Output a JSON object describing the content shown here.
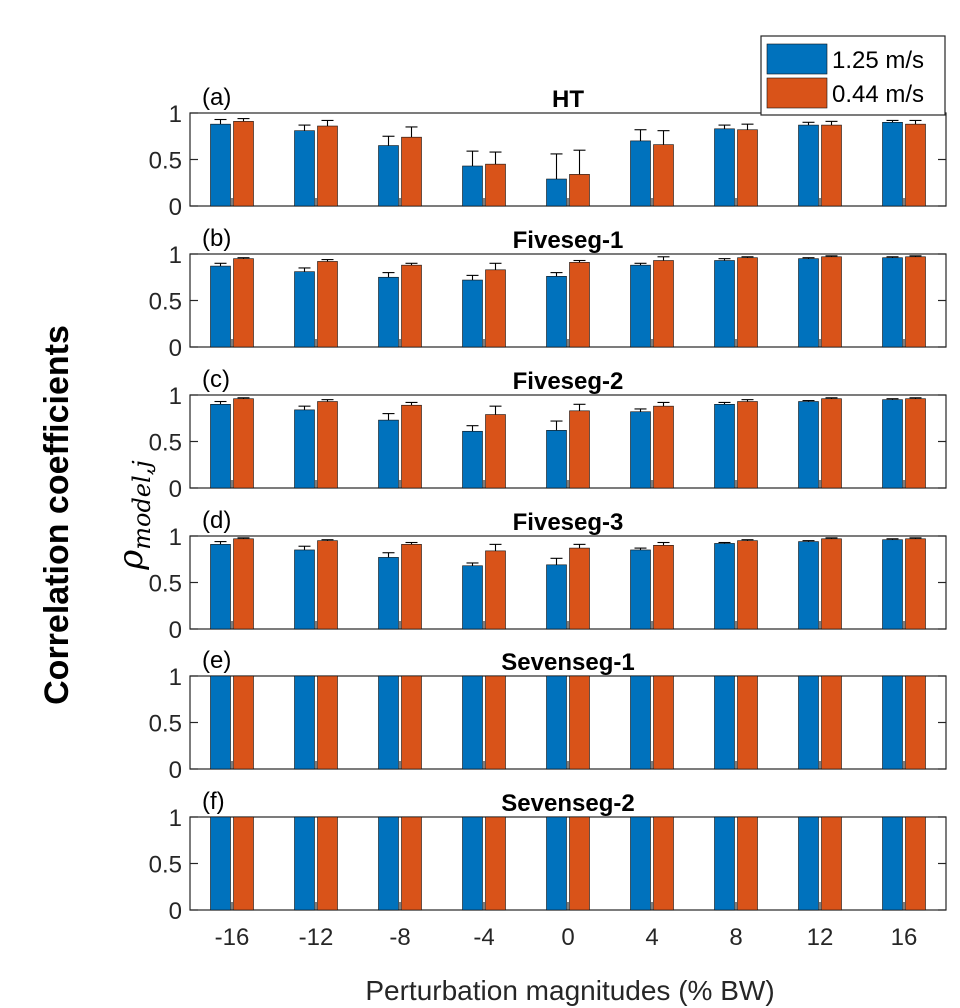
{
  "chart_data": {
    "type": "bar",
    "title": "",
    "xlabel": "Perturbation magnitudes (% BW)",
    "ylabel": "Correlation coefficients",
    "ylabel_symbol": "ρ",
    "ylabel_subscript": "model,j",
    "categories": [
      "-16",
      "-12",
      "-8",
      "-4",
      "0",
      "4",
      "8",
      "12",
      "16"
    ],
    "legend": {
      "placement": "top-right",
      "entries": [
        "1.25 m/s",
        "0.44 m/s"
      ]
    },
    "colors": {
      "1.25 m/s": "#0072BD",
      "0.44 m/s": "#D95319"
    },
    "panels": [
      {
        "label": "(a)",
        "title": "HT",
        "ylim": [
          0,
          1
        ],
        "yticks": [
          "0",
          "0.5",
          "1"
        ],
        "series": [
          {
            "name": "1.25 m/s",
            "values": [
              0.88,
              0.81,
              0.65,
              0.43,
              0.29,
              0.7,
              0.83,
              0.87,
              0.9
            ],
            "errors": [
              0.05,
              0.06,
              0.1,
              0.16,
              0.27,
              0.12,
              0.04,
              0.03,
              0.02
            ]
          },
          {
            "name": "0.44 m/s",
            "values": [
              0.91,
              0.86,
              0.74,
              0.45,
              0.34,
              0.66,
              0.82,
              0.87,
              0.88
            ],
            "errors": [
              0.03,
              0.06,
              0.11,
              0.13,
              0.26,
              0.15,
              0.06,
              0.04,
              0.04
            ]
          }
        ]
      },
      {
        "label": "(b)",
        "title": "Fiveseg-1",
        "ylim": [
          0,
          1
        ],
        "yticks": [
          "0",
          "0.5",
          "1"
        ],
        "series": [
          {
            "name": "1.25 m/s",
            "values": [
              0.87,
              0.81,
              0.75,
              0.72,
              0.76,
              0.88,
              0.93,
              0.95,
              0.96
            ],
            "errors": [
              0.03,
              0.04,
              0.05,
              0.05,
              0.04,
              0.02,
              0.02,
              0.01,
              0.01
            ]
          },
          {
            "name": "0.44 m/s",
            "values": [
              0.95,
              0.92,
              0.88,
              0.83,
              0.91,
              0.93,
              0.96,
              0.97,
              0.97
            ],
            "errors": [
              0.01,
              0.02,
              0.02,
              0.07,
              0.02,
              0.04,
              0.01,
              0.01,
              0.01
            ]
          }
        ]
      },
      {
        "label": "(c)",
        "title": "Fiveseg-2",
        "ylim": [
          0,
          1
        ],
        "yticks": [
          "0",
          "0.5",
          "1"
        ],
        "series": [
          {
            "name": "1.25 m/s",
            "values": [
              0.9,
              0.84,
              0.73,
              0.61,
              0.62,
              0.82,
              0.9,
              0.93,
              0.95
            ],
            "errors": [
              0.03,
              0.04,
              0.07,
              0.06,
              0.1,
              0.03,
              0.02,
              0.01,
              0.01
            ]
          },
          {
            "name": "0.44 m/s",
            "values": [
              0.96,
              0.93,
              0.89,
              0.79,
              0.83,
              0.88,
              0.93,
              0.96,
              0.96
            ],
            "errors": [
              0.01,
              0.02,
              0.03,
              0.09,
              0.07,
              0.04,
              0.02,
              0.01,
              0.01
            ]
          }
        ]
      },
      {
        "label": "(d)",
        "title": "Fiveseg-3",
        "ylim": [
          0,
          1
        ],
        "yticks": [
          "0",
          "0.5",
          "1"
        ],
        "series": [
          {
            "name": "1.25 m/s",
            "values": [
              0.91,
              0.85,
              0.77,
              0.68,
              0.69,
              0.85,
              0.92,
              0.94,
              0.96
            ],
            "errors": [
              0.03,
              0.04,
              0.05,
              0.03,
              0.07,
              0.02,
              0.01,
              0.01,
              0.01
            ]
          },
          {
            "name": "0.44 m/s",
            "values": [
              0.97,
              0.95,
              0.91,
              0.84,
              0.87,
              0.9,
              0.95,
              0.97,
              0.97
            ],
            "errors": [
              0.01,
              0.01,
              0.02,
              0.07,
              0.04,
              0.03,
              0.01,
              0.01,
              0.01
            ]
          }
        ]
      },
      {
        "label": "(e)",
        "title": "Sevenseg-1",
        "ylim": [
          0,
          1
        ],
        "yticks": [
          "0",
          "0.5",
          "1"
        ],
        "series": [
          {
            "name": "1.25 m/s",
            "values": [
              1,
              1,
              1,
              1,
              1,
              1,
              1,
              1,
              1
            ],
            "errors": [
              0,
              0,
              0,
              0,
              0,
              0,
              0,
              0,
              0
            ]
          },
          {
            "name": "0.44 m/s",
            "values": [
              1,
              1,
              1,
              1,
              1,
              1,
              1,
              1,
              1
            ],
            "errors": [
              0,
              0,
              0,
              0,
              0,
              0,
              0,
              0,
              0
            ]
          }
        ]
      },
      {
        "label": "(f)",
        "title": "Sevenseg-2",
        "ylim": [
          0,
          1
        ],
        "yticks": [
          "0",
          "0.5",
          "1"
        ],
        "series": [
          {
            "name": "1.25 m/s",
            "values": [
              1,
              1,
              1,
              1,
              1,
              1,
              1,
              1,
              1
            ],
            "errors": [
              0,
              0,
              0,
              0,
              0,
              0,
              0,
              0,
              0
            ]
          },
          {
            "name": "0.44 m/s",
            "values": [
              1,
              1,
              1,
              1,
              1,
              1,
              1,
              1,
              1
            ],
            "errors": [
              0,
              0,
              0,
              0,
              0,
              0,
              0,
              0,
              0
            ]
          }
        ]
      }
    ]
  }
}
